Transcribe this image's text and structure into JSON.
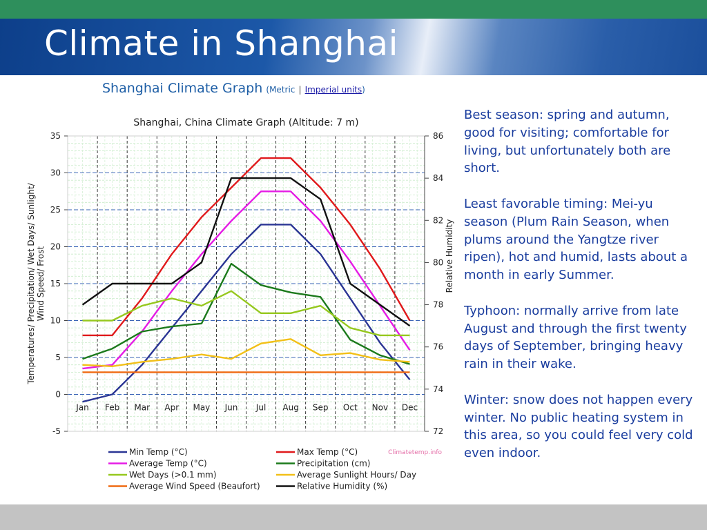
{
  "slide": {
    "title": "Climate in Shanghai",
    "colors": {
      "top_bar": "#2e8f5c",
      "banner": "#1c58a8",
      "bottom_bar": "#c3c3c3",
      "text": "#1a3d9e"
    }
  },
  "graph_header": {
    "title": "Shanghai Climate Graph",
    "open_paren": "(",
    "metric_label": "Metric",
    "separator": "|",
    "imperial_link": "Imperial units",
    "close_paren": ")"
  },
  "notes": [
    "Best season: spring and autumn, good for visiting; comfortable for living, but unfortunately both are short.",
    "Least favorable timing: Mei-yu season (Plum Rain Season, when plums around the Yangtze river ripen), hot and humid, lasts about a month in early Summer.",
    "Typhoon: normally arrive from late August and through the first twenty days of September, bringing heavy rain in their wake.",
    "Winter: snow does not happen every winter. No public heating system in this area, so you could feel very cold even indoor."
  ],
  "chart_data": {
    "type": "line",
    "title": "Shanghai, China Climate Graph (Altitude: 7 m)",
    "ylabel_lines": [
      "Temperatures/ Precipitation/ Wet Days/ Sunlight/",
      "Wind Speed/ Frost"
    ],
    "y2label": "Relative Humidity",
    "watermark": "Climatetemp.info",
    "categories": [
      "Jan",
      "Feb",
      "Mar",
      "Apr",
      "May",
      "Jun",
      "Jul",
      "Aug",
      "Sep",
      "Oct",
      "Nov",
      "Dec"
    ],
    "ylim": [
      -5,
      35
    ],
    "y_ticks": [
      -5,
      0,
      5,
      10,
      15,
      20,
      25,
      30,
      35
    ],
    "y2lim": [
      72,
      86
    ],
    "y2_ticks": [
      72,
      74,
      76,
      78,
      80,
      82,
      84,
      86
    ],
    "grid": true,
    "legend_position": "bottom",
    "series": [
      {
        "name": "Min Temp (°C)",
        "color": "#2a3594",
        "axis": "left",
        "values": [
          -1,
          0,
          4,
          9,
          14,
          19,
          23,
          23,
          19,
          13,
          7,
          2
        ]
      },
      {
        "name": "Max Temp (°C)",
        "color": "#e0191b",
        "axis": "left",
        "values": [
          8,
          8,
          13,
          19,
          24,
          28,
          32,
          32,
          28,
          23,
          17,
          10
        ]
      },
      {
        "name": "Average Temp (°C)",
        "color": "#e51be5",
        "axis": "left",
        "values": [
          3.5,
          4,
          8.5,
          14,
          19,
          23.5,
          27.5,
          27.5,
          23.5,
          18,
          12,
          6
        ]
      },
      {
        "name": "Precipitation (cm)",
        "color": "#1b7a1b",
        "axis": "left",
        "values": [
          4.8,
          6.2,
          8.5,
          9.2,
          9.6,
          17.7,
          14.8,
          13.8,
          13.2,
          7.4,
          5.3,
          4.1
        ]
      },
      {
        "name": "Wet Days (>0.1 mm)",
        "color": "#96c81e",
        "axis": "left",
        "values": [
          10,
          10,
          12,
          13,
          12,
          14,
          11,
          11,
          12,
          9,
          8,
          8
        ]
      },
      {
        "name": "Average Sunlight Hours/ Day",
        "color": "#f2c018",
        "axis": "left",
        "values": [
          4,
          3.8,
          4.4,
          4.8,
          5.4,
          4.8,
          6.9,
          7.5,
          5.3,
          5.6,
          4.7,
          4.4
        ]
      },
      {
        "name": "Average Wind Speed (Beaufort)",
        "color": "#ef6a12",
        "axis": "left",
        "values": [
          3,
          3,
          3,
          3,
          3,
          3,
          3,
          3,
          3,
          3,
          3,
          3
        ]
      },
      {
        "name": "Relative Humidity (%)",
        "color": "#111111",
        "axis": "right",
        "values": [
          78,
          79,
          79,
          79,
          80,
          84,
          84,
          84,
          83,
          79,
          78,
          77
        ]
      }
    ]
  }
}
